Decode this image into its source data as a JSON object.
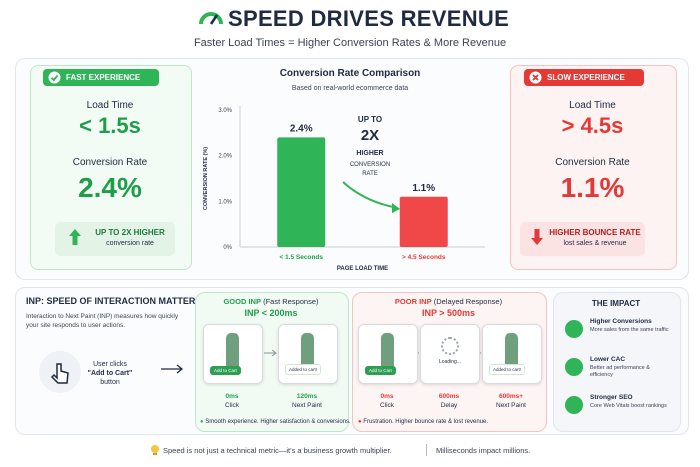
{
  "header": {
    "title": "SPEED DRIVES REVENUE",
    "subtitle": "Faster Load Times = Higher Conversion Rates & More Revenue"
  },
  "fast": {
    "badge": "FAST EXPERIENCE",
    "load_label": "Load Time",
    "load_value": "< 1.5s",
    "conv_label": "Conversion Rate",
    "conv_value": "2.4%",
    "note_title": "UP TO 2X HIGHER",
    "note_sub": "conversion rate"
  },
  "slow": {
    "badge": "SLOW EXPERIENCE",
    "load_label": "Load Time",
    "load_value": "> 4.5s",
    "conv_label": "Conversion Rate",
    "conv_value": "1.1%",
    "note_title": "HIGHER BOUNCE RATE",
    "note_sub": "lost sales & revenue"
  },
  "chart_data": {
    "type": "bar",
    "title": "Conversion Rate Comparison",
    "subtitle": "Based on real-world ecommerce data",
    "y_label": "CONVERSION RATE (%)",
    "x_label": "PAGE LOAD TIME",
    "categories": [
      "< 1.5 Seconds",
      "> 4.5 Seconds"
    ],
    "values": [
      2.4,
      1.1
    ],
    "value_labels": [
      "2.4%",
      "1.1%"
    ],
    "colors": [
      "#2fb457",
      "#f04848"
    ],
    "ylim": [
      0,
      3
    ],
    "yticks": [
      {
        "value": 0,
        "label": "0%"
      },
      {
        "value": 1,
        "label": "1.0%"
      },
      {
        "value": 2,
        "label": "2.0%"
      },
      {
        "value": 3,
        "label": "3.0%"
      }
    ],
    "annotation": [
      "UP TO",
      "2X",
      "HIGHER",
      "CONVERSION",
      "RATE"
    ]
  },
  "inp": {
    "title": "INP: SPEED OF INTERACTION MATTERS",
    "description": [
      "Interaction to Next Paint (INP) measures how quickly",
      "your site responds to user actions."
    ],
    "action": [
      "User clicks",
      "\"Add to Cart\"",
      "button"
    ],
    "good": {
      "title": "GOOD INP",
      "title_note": "(Fast Response)",
      "value": "INP < 200ms",
      "screens": [
        "Add to Cart",
        "Added to cart!"
      ],
      "steps": [
        [
          "0ms",
          "Click"
        ],
        [
          "120ms",
          "Next Paint"
        ]
      ],
      "note": "Smooth experience. Higher satisfaction & conversions."
    },
    "poor": {
      "title": "POOR INP",
      "title_note": "(Delayed Response)",
      "value": "INP > 500ms",
      "screens": [
        "Add to Cart",
        "Loading...",
        "Added to cart!"
      ],
      "steps": [
        [
          "0ms",
          "Click"
        ],
        [
          "600ms",
          "Delay"
        ],
        [
          "600ms+",
          "Next Paint"
        ]
      ],
      "note": "Frustration. Higher bounce rate & lost revenue."
    }
  },
  "impact": {
    "title": "THE IMPACT",
    "items": [
      {
        "title": "Higher Conversions",
        "text": "More sales from the same traffic"
      },
      {
        "title": "Lower CAC",
        "text": "Better ad performance & efficiency"
      },
      {
        "title": "Stronger SEO",
        "text": "Core Web Vitals boost rankings"
      }
    ]
  },
  "footer": {
    "note": "Speed is not just a technical metric—it's a business growth multiplier.",
    "tagline": "Milliseconds impact millions."
  }
}
